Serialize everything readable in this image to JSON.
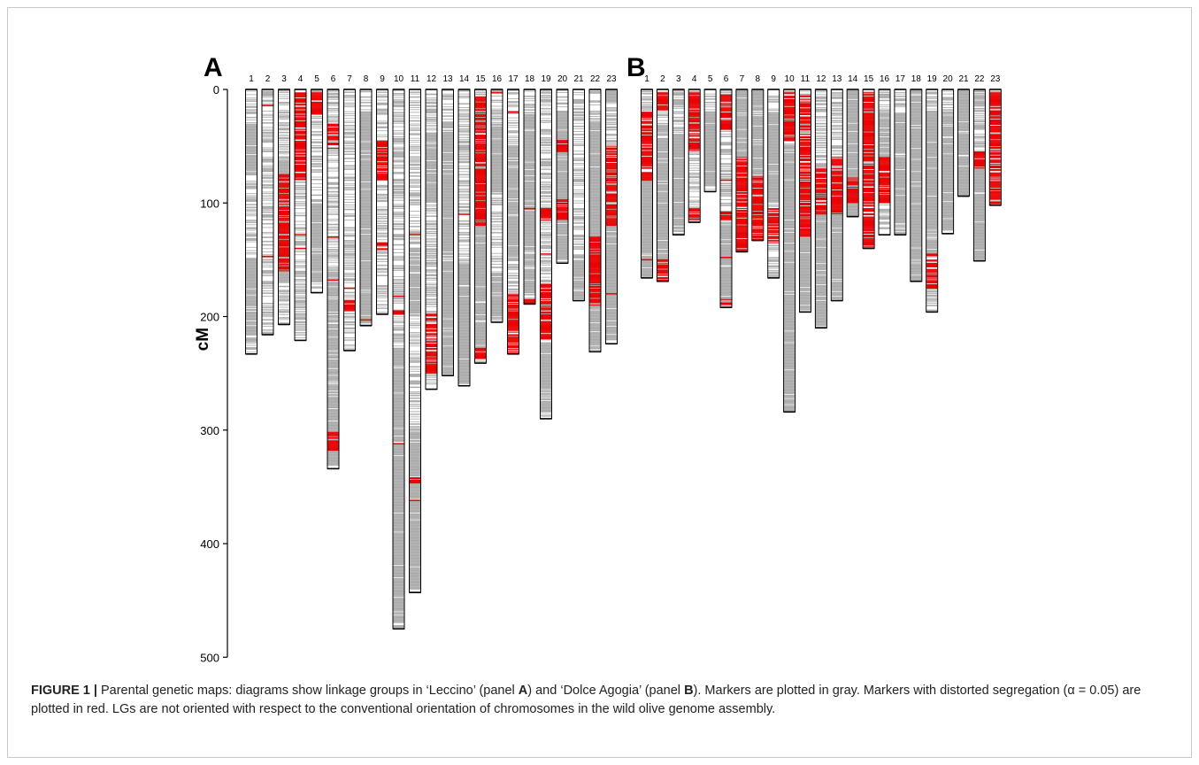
{
  "chart_data": {
    "type": "linkage-map",
    "ylabel": "cM",
    "yticks": [
      0,
      100,
      200,
      300,
      400,
      500
    ],
    "ylim": [
      0,
      500
    ],
    "colors": {
      "marker": "#a8a8a8",
      "distorted": "#ee0000",
      "outline": "#000000"
    },
    "panels": [
      {
        "label": "A",
        "groups": [
          {
            "lg": "1",
            "length": 233,
            "red": [],
            "dense": [
              [
                30,
                75
              ],
              [
                150,
                215
              ]
            ]
          },
          {
            "lg": "2",
            "length": 216,
            "red": [
              14,
              147
            ],
            "dense": []
          },
          {
            "lg": "3",
            "length": 207,
            "red": [
              [
                75,
                160
              ]
            ],
            "dense": [
              [
                60,
                170
              ]
            ]
          },
          {
            "lg": "4",
            "length": 221,
            "red": [
              [
                3,
                80
              ],
              128,
              140
            ],
            "dense": []
          },
          {
            "lg": "5",
            "length": 179,
            "red": [
              [
                3,
                22
              ]
            ],
            "dense": [
              [
                100,
                170
              ]
            ]
          },
          {
            "lg": "6",
            "length": 334,
            "red": [
              [
                30,
                52
              ],
              130,
              168,
              [
                302,
                318
              ]
            ],
            "dense": [
              [
                160,
                330
              ]
            ]
          },
          {
            "lg": "7",
            "length": 230,
            "red": [
              175,
              [
                185,
                195
              ]
            ],
            "dense": []
          },
          {
            "lg": "8",
            "length": 208,
            "red": [
              203
            ],
            "dense": [
              [
                20,
                205
              ]
            ]
          },
          {
            "lg": "9",
            "length": 198,
            "red": [
              [
                45,
                80
              ],
              [
                135,
                142
              ]
            ],
            "dense": []
          },
          {
            "lg": "10",
            "length": 475,
            "red": [
              182,
              [
                195,
                198
              ],
              312
            ],
            "dense": [
              [
                230,
                470
              ]
            ]
          },
          {
            "lg": "11",
            "length": 443,
            "red": [
              128,
              [
                342,
                347
              ],
              362
            ],
            "dense": [
              [
                140,
                200
              ],
              [
                300,
                440
              ]
            ]
          },
          {
            "lg": "12",
            "length": 264,
            "red": [
              [
                198,
                250
              ]
            ],
            "dense": [
              [
                40,
                100
              ]
            ]
          },
          {
            "lg": "13",
            "length": 252,
            "red": [],
            "dense": [
              [
                30,
                250
              ]
            ]
          },
          {
            "lg": "14",
            "length": 261,
            "red": [
              110
            ],
            "dense": [
              [
                150,
                258
              ]
            ]
          },
          {
            "lg": "15",
            "length": 241,
            "red": [
              [
                5,
                120
              ],
              [
                228,
                237
              ]
            ],
            "dense": [
              [
                20,
                230
              ]
            ]
          },
          {
            "lg": "16",
            "length": 205,
            "red": [
              3
            ],
            "dense": [
              [
                30,
                90
              ],
              [
                160,
                200
              ]
            ]
          },
          {
            "lg": "17",
            "length": 233,
            "red": [
              20,
              [
                180,
                233
              ]
            ],
            "dense": [
              [
                50,
                150
              ]
            ]
          },
          {
            "lg": "18",
            "length": 189,
            "red": [
              105,
              [
                185,
                189
              ]
            ],
            "dense": [
              [
                20,
                180
              ]
            ]
          },
          {
            "lg": "19",
            "length": 290,
            "red": [
              [
                105,
                115
              ],
              145,
              [
                170,
                220
              ]
            ],
            "dense": [
              [
                225,
                285
              ]
            ]
          },
          {
            "lg": "20",
            "length": 153,
            "red": [
              [
                45,
                55
              ],
              [
                95,
                115
              ]
            ],
            "dense": [
              [
                20,
                150
              ]
            ]
          },
          {
            "lg": "21",
            "length": 186,
            "red": [],
            "dense": [
              [
                150,
                185
              ]
            ]
          },
          {
            "lg": "22",
            "length": 231,
            "red": [
              [
                130,
                190
              ]
            ],
            "dense": [
              [
                30,
                230
              ]
            ]
          },
          {
            "lg": "23",
            "length": 224,
            "red": [
              [
                50,
                120
              ],
              180
            ],
            "dense": [
              [
                0,
                10
              ],
              [
                100,
                220
              ]
            ]
          }
        ]
      },
      {
        "label": "B",
        "groups": [
          {
            "lg": "1",
            "length": 166,
            "red": [
              [
                20,
                82
              ],
              150
            ],
            "dense": [
              [
                80,
                165
              ]
            ]
          },
          {
            "lg": "2",
            "length": 169,
            "red": [
              [
                3,
                18
              ],
              [
                150,
                168
              ]
            ],
            "dense": [
              [
                30,
                150
              ]
            ]
          },
          {
            "lg": "3",
            "length": 128,
            "red": [],
            "dense": [
              [
                40,
                120
              ]
            ]
          },
          {
            "lg": "4",
            "length": 117,
            "red": [
              [
                3,
                55
              ],
              [
                105,
                115
              ]
            ],
            "dense": []
          },
          {
            "lg": "5",
            "length": 90,
            "red": [],
            "dense": [
              [
                20,
                85
              ]
            ]
          },
          {
            "lg": "6",
            "length": 192,
            "red": [
              [
                5,
                35
              ],
              80,
              [
                108,
                115
              ],
              148,
              [
                185,
                192
              ]
            ],
            "dense": [
              [
                120,
                190
              ]
            ]
          },
          {
            "lg": "7",
            "length": 143,
            "red": [
              [
                60,
                143
              ]
            ],
            "dense": [
              [
                0,
                60
              ]
            ]
          },
          {
            "lg": "8",
            "length": 133,
            "red": [
              [
                75,
                133
              ]
            ],
            "dense": [
              [
                0,
                75
              ]
            ]
          },
          {
            "lg": "9",
            "length": 166,
            "red": [
              [
                105,
                135
              ]
            ],
            "dense": [
              [
                20,
                100
              ]
            ]
          },
          {
            "lg": "10",
            "length": 284,
            "red": [
              [
                3,
                45
              ]
            ],
            "dense": [
              [
                50,
                283
              ]
            ]
          },
          {
            "lg": "11",
            "length": 196,
            "red": [
              [
                5,
                130
              ]
            ],
            "dense": [
              [
                130,
                195
              ]
            ]
          },
          {
            "lg": "12",
            "length": 210,
            "red": [
              [
                70,
                110
              ]
            ],
            "dense": [
              [
                110,
                208
              ]
            ]
          },
          {
            "lg": "13",
            "length": 186,
            "red": [
              [
                60,
                110
              ]
            ],
            "dense": [
              [
                110,
                185
              ]
            ]
          },
          {
            "lg": "14",
            "length": 112,
            "red": [
              [
                78,
                100
              ]
            ],
            "dense": [
              [
                0,
                112
              ]
            ]
          },
          {
            "lg": "15",
            "length": 140,
            "red": [
              [
                3,
                140
              ]
            ],
            "dense": []
          },
          {
            "lg": "16",
            "length": 128,
            "red": [
              [
                60,
                100
              ]
            ],
            "dense": [
              [
                20,
                60
              ]
            ]
          },
          {
            "lg": "17",
            "length": 128,
            "red": [],
            "dense": [
              [
                20,
                125
              ]
            ]
          },
          {
            "lg": "18",
            "length": 169,
            "red": [],
            "dense": [
              [
                0,
                169
              ]
            ]
          },
          {
            "lg": "19",
            "length": 196,
            "red": [
              [
                145,
                175
              ]
            ],
            "dense": [
              [
                20,
                145
              ]
            ]
          },
          {
            "lg": "20",
            "length": 127,
            "red": [],
            "dense": [
              [
                20,
                125
              ]
            ]
          },
          {
            "lg": "21",
            "length": 94,
            "red": [],
            "dense": [
              [
                0,
                94
              ]
            ]
          },
          {
            "lg": "22",
            "length": 151,
            "red": [
              [
                55,
                70
              ]
            ],
            "dense": [
              [
                70,
                150
              ]
            ]
          },
          {
            "lg": "23",
            "length": 102,
            "red": [
              [
                3,
                102
              ]
            ],
            "dense": []
          }
        ]
      }
    ]
  },
  "caption": {
    "label": "FIGURE 1 |",
    "t1": " Parental genetic maps: diagrams show linkage groups in ‘Leccino’ (panel ",
    "a": "A",
    "t2": ") and ‘Dolce Agogia’ (panel ",
    "b": "B",
    "t3": "). Markers are plotted in gray. Markers with distorted segregation (α = 0.05) are plotted in red. LGs are not oriented with respect to the conventional orientation of chromosomes in the wild olive genome assembly."
  }
}
